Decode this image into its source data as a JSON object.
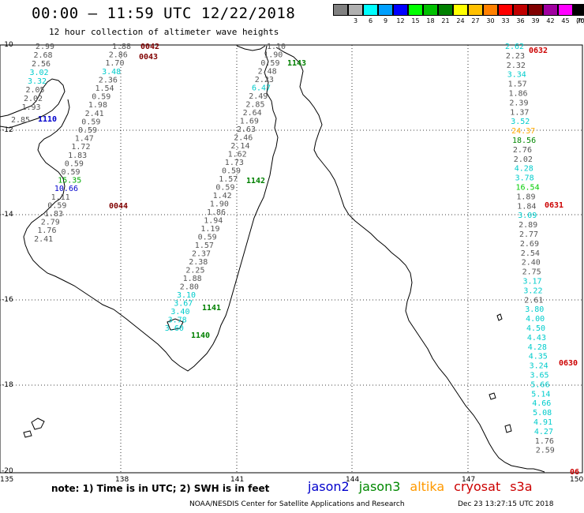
{
  "header": {
    "title": "00:00 – 11:59 UTC 12/22/2018",
    "subtitle": "12 hour collection of altimeter wave heights"
  },
  "legend": {
    "unit": "(ft)",
    "bins": [
      {
        "label": "",
        "color": "#808080"
      },
      {
        "label": "3",
        "color": "#b0b0b0"
      },
      {
        "label": "6",
        "color": "#00ffff"
      },
      {
        "label": "9",
        "color": "#00a0ff"
      },
      {
        "label": "12",
        "color": "#0000ff"
      },
      {
        "label": "15",
        "color": "#00ff00"
      },
      {
        "label": "18",
        "color": "#00c000"
      },
      {
        "label": "21",
        "color": "#008000"
      },
      {
        "label": "24",
        "color": "#ffff00"
      },
      {
        "label": "27",
        "color": "#ffc000"
      },
      {
        "label": "30",
        "color": "#ff8000"
      },
      {
        "label": "33",
        "color": "#ff0000"
      },
      {
        "label": "36",
        "color": "#c00000"
      },
      {
        "label": "39",
        "color": "#800000"
      },
      {
        "label": "42",
        "color": "#a000a0"
      },
      {
        "label": "45",
        "color": "#ff00ff"
      },
      {
        "label": "70",
        "color": "#000000"
      }
    ]
  },
  "axes": {
    "lat_labels": [
      "-10",
      "-12",
      "-14",
      "-16",
      "-18",
      "-20"
    ],
    "lon_labels": [
      "135",
      "138",
      "141",
      "144",
      "147",
      "150"
    ]
  },
  "footer": {
    "note": "note: 1) Time is in UTC; 2) SWH is in feet",
    "satellites": [
      {
        "name": "jason2",
        "color": "#0000cc"
      },
      {
        "name": "jason3",
        "color": "#008800"
      },
      {
        "name": "altika",
        "color": "#ff9900"
      },
      {
        "name": "cryosat",
        "color": "#cc0000"
      },
      {
        "name": "s3a",
        "color": "#cc0000"
      }
    ],
    "credit": "NOAA/NESDIS Center for Satellite Applications and Research",
    "stamp": "Dec 23 13:27:15 UTC 2018"
  },
  "pass_labels": [
    {
      "text": "0042",
      "color": "#800000"
    },
    {
      "text": "0043",
      "color": "#800000"
    },
    {
      "text": "0632",
      "color": "#cc0000"
    },
    {
      "text": "1143",
      "color": "#008000"
    },
    {
      "text": "1110",
      "color": "#0000cc"
    },
    {
      "text": "1142",
      "color": "#008000"
    },
    {
      "text": "0044",
      "color": "#800000"
    },
    {
      "text": "0631",
      "color": "#cc0000"
    },
    {
      "text": "1141",
      "color": "#008000"
    },
    {
      "text": "1140",
      "color": "#008000"
    },
    {
      "text": "0630",
      "color": "#cc0000"
    },
    {
      "text": "06",
      "color": "#cc0000"
    }
  ],
  "tracks": [
    {
      "values": [
        "2.99",
        "2.68",
        "2.56",
        "3.02",
        "3.32",
        "2.05",
        "2.02",
        "1.93"
      ],
      "colors": [
        "#555",
        "#555",
        "#555",
        "#00cccc",
        "#00cccc",
        "#555",
        "#555",
        "#555"
      ]
    },
    {
      "values": [
        "1.88",
        "2.86",
        "1.70",
        "3.48",
        "2.36",
        "1.54",
        "0.59",
        "1.98",
        "2.41",
        "0.59",
        "0.59",
        "1.47",
        "1.72",
        "1.83",
        "0.59",
        "0.59",
        "15.35",
        "10.66",
        "1.11",
        "0.59",
        "1.83",
        "2.79",
        "1.76",
        "2.41"
      ],
      "colors": [
        "#555",
        "#555",
        "#555",
        "#00cccc",
        "#555",
        "#555",
        "#555",
        "#555",
        "#555",
        "#555",
        "#555",
        "#555",
        "#555",
        "#555",
        "#555",
        "#555",
        "#00aa00",
        "#0000cc",
        "#555",
        "#555",
        "#555",
        "#555",
        "#555",
        "#555"
      ]
    },
    {
      "values": [
        "2.85"
      ],
      "colors": [
        "#555"
      ]
    },
    {
      "values": [
        "1.10",
        "1.90",
        "0.59",
        "2.48",
        "2.23",
        "6.47",
        "2.49",
        "2.85",
        "2.64",
        "1.69",
        "2.63",
        "2.46",
        "2.14",
        "1.62",
        "1.73",
        "0.59",
        "1.57",
        "0.59",
        "1.42",
        "1.90",
        "1.86",
        "1.94",
        "1.19",
        "0.59",
        "1.57",
        "2.37",
        "2.38",
        "2.25",
        "1.88",
        "2.80",
        "3.10",
        "3.67",
        "3.40",
        "3.78",
        "3.60"
      ],
      "colors": [
        "#555",
        "#555",
        "#555",
        "#555",
        "#555",
        "#00cccc",
        "#555",
        "#555",
        "#555",
        "#555",
        "#555",
        "#555",
        "#555",
        "#555",
        "#555",
        "#555",
        "#555",
        "#555",
        "#555",
        "#555",
        "#555",
        "#555",
        "#555",
        "#555",
        "#555",
        "#555",
        "#555",
        "#555",
        "#555",
        "#555",
        "#00cccc",
        "#00cccc",
        "#00cccc",
        "#00cccc",
        "#00cccc"
      ]
    },
    {
      "values": [
        "2.62",
        "2.23",
        "2.32",
        "3.34",
        "1.57",
        "1.86",
        "2.39",
        "1.37",
        "3.52",
        "24.37",
        "18.56",
        "2.76",
        "2.02",
        "4.28",
        "3.78",
        "16.54",
        "1.89",
        "1.84",
        "3.09",
        "2.89",
        "2.77",
        "2.69",
        "2.54",
        "2.40",
        "2.75",
        "3.17",
        "3.22",
        "2.61",
        "3.80",
        "4.00",
        "4.50",
        "4.43",
        "4.28",
        "4.35",
        "3.24",
        "3.65",
        "5.66",
        "5.14",
        "4.66",
        "5.08",
        "4.91",
        "4.27",
        "1.76",
        "2.59"
      ],
      "colors": [
        "#00cccc",
        "#555",
        "#555",
        "#00cccc",
        "#555",
        "#555",
        "#555",
        "#555",
        "#00cccc",
        "#ffaa00",
        "#008800",
        "#555",
        "#555",
        "#00cccc",
        "#00cccc",
        "#00cc00",
        "#555",
        "#555",
        "#00cccc",
        "#555",
        "#555",
        "#555",
        "#555",
        "#555",
        "#555",
        "#00cccc",
        "#00cccc",
        "#555",
        "#00cccc",
        "#00cccc",
        "#00cccc",
        "#00cccc",
        "#00cccc",
        "#00cccc",
        "#00cccc",
        "#00cccc",
        "#00cccc",
        "#00cccc",
        "#00cccc",
        "#00cccc",
        "#00cccc",
        "#00cccc",
        "#555",
        "#555"
      ]
    }
  ]
}
